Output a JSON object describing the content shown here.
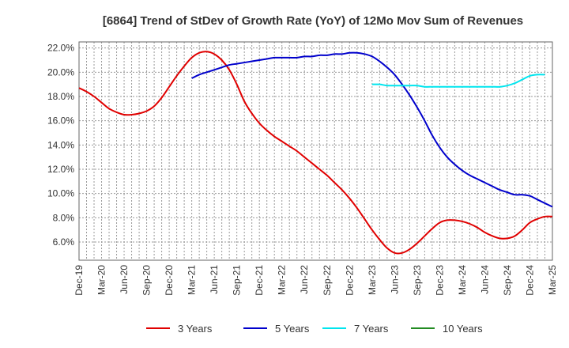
{
  "chart_data": {
    "type": "line",
    "title": "[6864]  Trend of StDev of Growth Rate (YoY) of 12Mo Mov Sum of Revenues",
    "xlabel": "",
    "ylabel": "",
    "ylim": [
      4.5,
      22.5
    ],
    "y_ticks": [
      6.0,
      8.0,
      10.0,
      12.0,
      14.0,
      16.0,
      18.0,
      20.0,
      22.0
    ],
    "y_tick_labels": [
      "6.0%",
      "8.0%",
      "10.0%",
      "12.0%",
      "14.0%",
      "16.0%",
      "18.0%",
      "20.0%",
      "22.0%"
    ],
    "x_tick_labels": [
      "Dec-19",
      "Mar-20",
      "Jun-20",
      "Sep-20",
      "Dec-20",
      "Mar-21",
      "Jun-21",
      "Sep-21",
      "Dec-21",
      "Mar-22",
      "Jun-22",
      "Sep-22",
      "Dec-22",
      "Mar-23",
      "Jun-23",
      "Sep-23",
      "Dec-23",
      "Mar-24",
      "Jun-24",
      "Sep-24",
      "Dec-24",
      "Mar-25"
    ],
    "x_months_span": 63,
    "grid": true,
    "legend_position": "bottom",
    "series": [
      {
        "name": "3 Years",
        "color": "#e00000",
        "start_month": 0,
        "values": [
          18.7,
          18.4,
          18.0,
          17.5,
          17.0,
          16.7,
          16.5,
          16.5,
          16.6,
          16.8,
          17.2,
          17.9,
          18.8,
          19.7,
          20.5,
          21.2,
          21.6,
          21.7,
          21.5,
          21.0,
          20.2,
          19.0,
          17.6,
          16.6,
          15.8,
          15.2,
          14.7,
          14.3,
          13.9,
          13.5,
          13.0,
          12.5,
          12.0,
          11.5,
          10.9,
          10.3,
          9.6,
          8.8,
          7.9,
          7.0,
          6.2,
          5.5,
          5.1,
          5.1,
          5.4,
          5.9,
          6.5,
          7.1,
          7.6,
          7.8,
          7.8,
          7.7,
          7.5,
          7.2,
          6.8,
          6.5,
          6.3,
          6.3,
          6.5,
          7.0,
          7.6,
          7.9,
          8.1,
          8.1
        ]
      },
      {
        "name": "5 Years",
        "color": "#0000cc",
        "start_month": 15,
        "values": [
          19.5,
          19.8,
          20.0,
          20.2,
          20.4,
          20.6,
          20.7,
          20.8,
          20.9,
          21.0,
          21.1,
          21.2,
          21.2,
          21.2,
          21.2,
          21.3,
          21.3,
          21.4,
          21.4,
          21.5,
          21.5,
          21.6,
          21.6,
          21.5,
          21.3,
          20.9,
          20.4,
          19.8,
          19.0,
          18.1,
          17.1,
          16.0,
          14.8,
          13.8,
          13.0,
          12.4,
          11.9,
          11.5,
          11.2,
          10.9,
          10.6,
          10.3,
          10.1,
          9.9,
          9.9,
          9.8,
          9.5,
          9.2,
          8.9
        ]
      },
      {
        "name": "7 Years",
        "color": "#00e5ee",
        "start_month": 39,
        "values": [
          19.0,
          19.0,
          18.9,
          18.9,
          18.9,
          18.9,
          18.9,
          18.8,
          18.8,
          18.8,
          18.8,
          18.8,
          18.8,
          18.8,
          18.8,
          18.8,
          18.8,
          18.8,
          18.9,
          19.1,
          19.4,
          19.7,
          19.8,
          19.8
        ]
      },
      {
        "name": "10 Years",
        "color": "#228b22",
        "start_month": 0,
        "values": []
      }
    ]
  }
}
